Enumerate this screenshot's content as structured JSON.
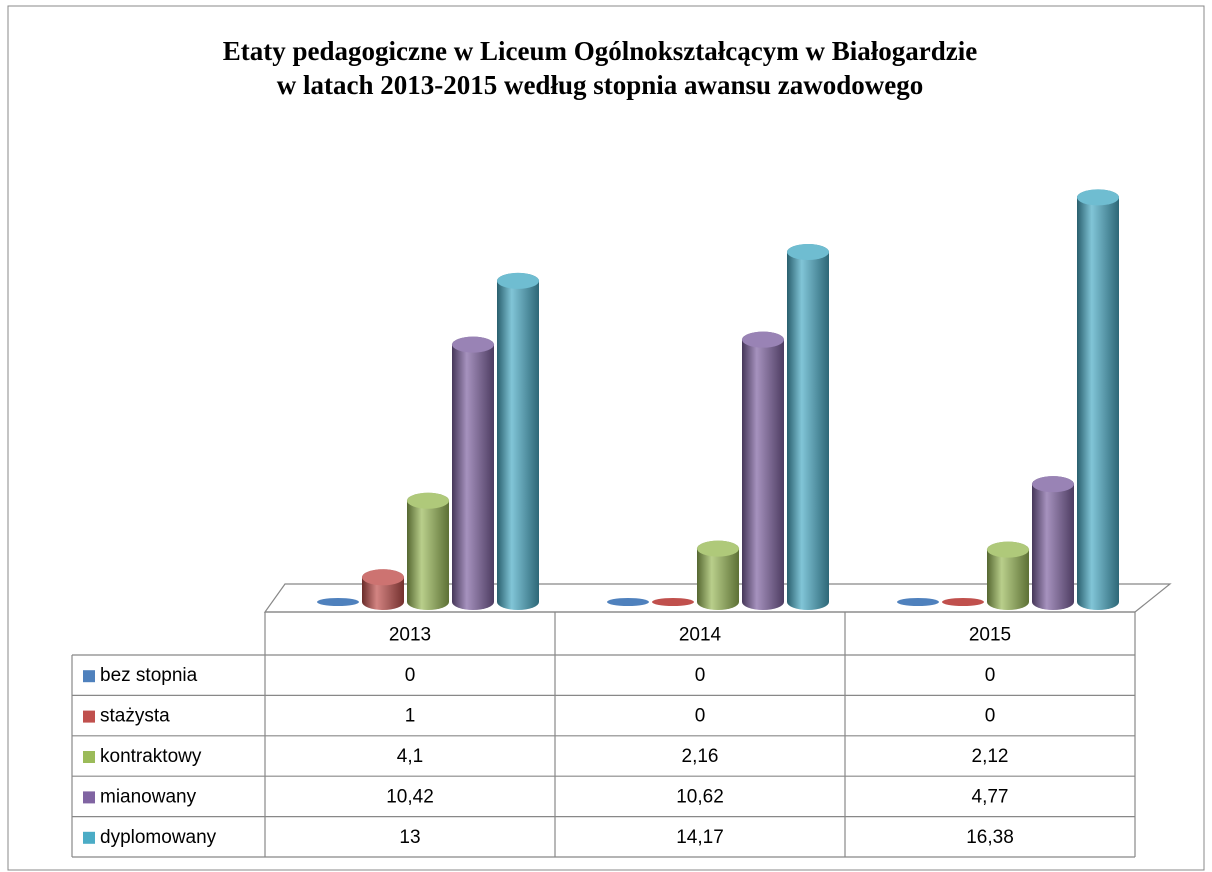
{
  "chart_data": {
    "type": "bar3d",
    "title": [
      "Etaty pedagogiczne w Liceum Ogólnokształcącym w Białogardzie",
      "w latach 2013-2015 według stopnia awansu zawodowego"
    ],
    "categories": [
      "2013",
      "2014",
      "2015"
    ],
    "series": [
      {
        "name": "bez stopnia",
        "color": "#4f81bd",
        "values": [
          0,
          0,
          0
        ]
      },
      {
        "name": "stażysta",
        "color": "#c0504d",
        "values": [
          1,
          0,
          0
        ]
      },
      {
        "name": "kontraktowy",
        "color": "#9bbb59",
        "values": [
          4.1,
          2.16,
          2.12
        ],
        "value_labels": [
          "4,1",
          "2,16",
          "2,12"
        ]
      },
      {
        "name": "mianowany",
        "color": "#8064a2",
        "values": [
          10.42,
          10.62,
          4.77
        ],
        "value_labels": [
          "10,42",
          "10,62",
          "4,77"
        ]
      },
      {
        "name": "dyplomowany",
        "color": "#4bacc6",
        "values": [
          13,
          14.17,
          16.38
        ],
        "value_labels": [
          "13",
          "14,17",
          "16,38"
        ]
      }
    ]
  }
}
